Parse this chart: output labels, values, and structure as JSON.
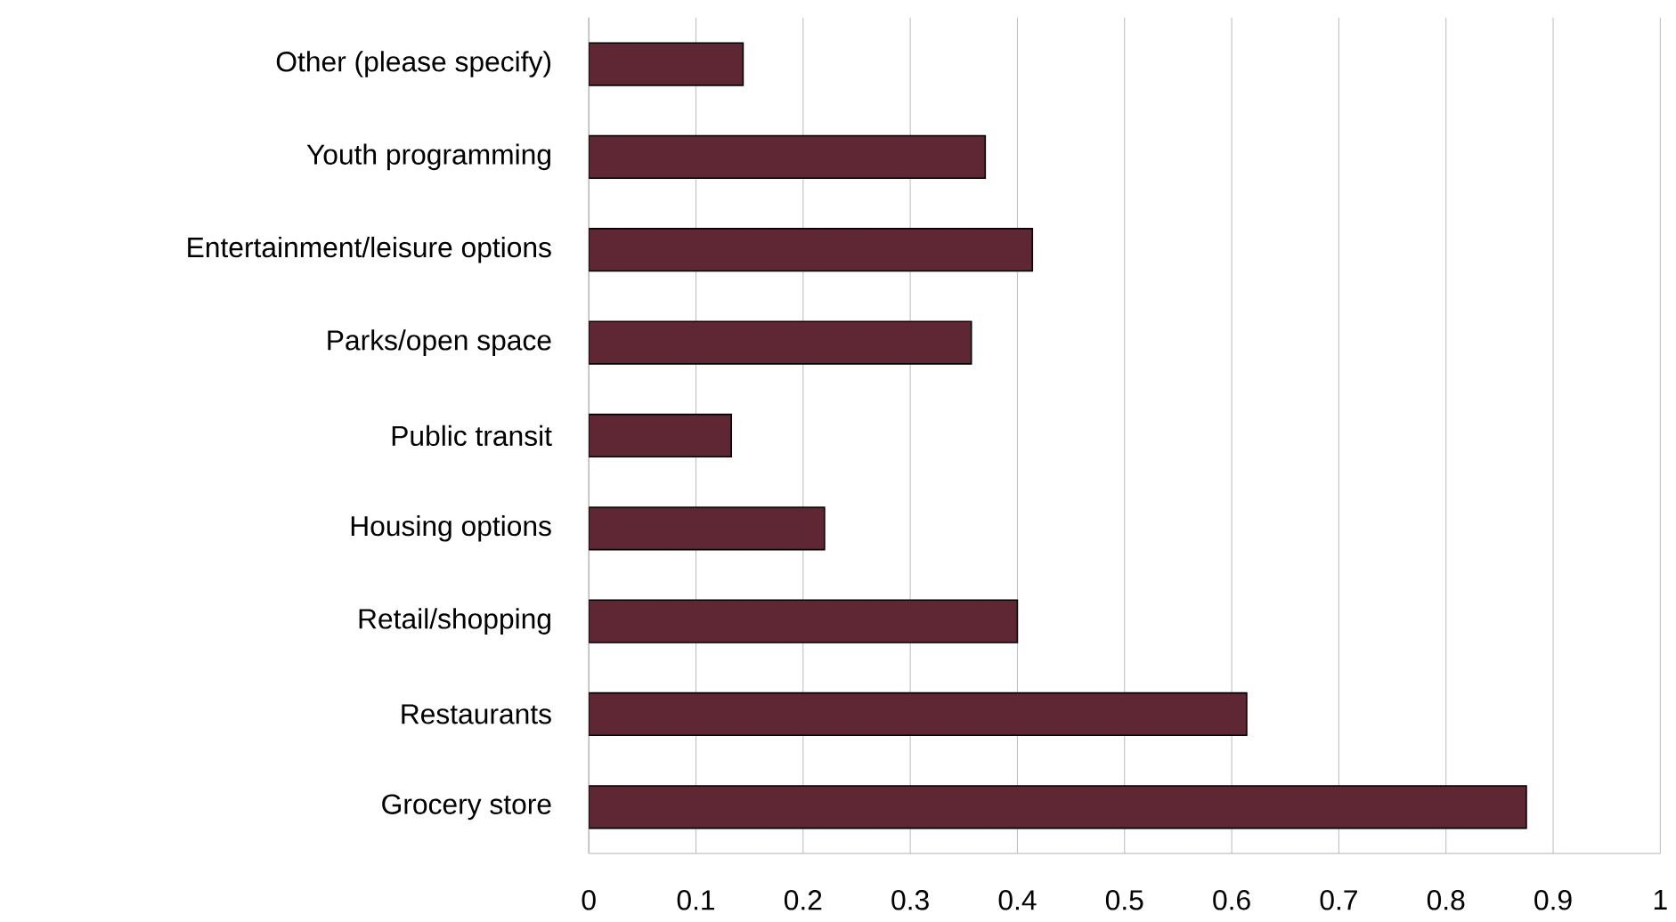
{
  "chart_data": {
    "type": "bar",
    "orientation": "horizontal",
    "categories": [
      "Other (please specify)",
      "Youth programming",
      "Entertainment/leisure options",
      "Parks/open space",
      "Public transit",
      "Housing options",
      "Retail/shopping",
      "Restaurants",
      "Grocery store"
    ],
    "values": [
      0.144,
      0.37,
      0.414,
      0.357,
      0.133,
      0.22,
      0.4,
      0.614,
      0.875
    ],
    "color": "#5f2633",
    "xlim": [
      0,
      1
    ],
    "xticks": [
      0,
      0.1,
      0.2,
      0.3,
      0.4,
      0.5,
      0.6,
      0.7,
      0.8,
      0.9,
      1
    ],
    "grid": "x"
  }
}
